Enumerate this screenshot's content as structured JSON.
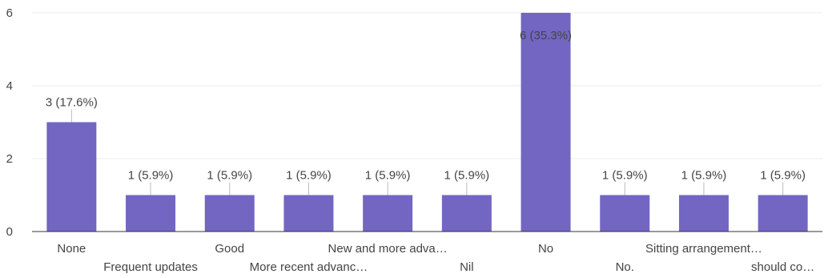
{
  "chart_data": {
    "type": "bar",
    "categories": [
      "None",
      "Frequent updates",
      "Good",
      "More recent advanc…",
      "New and more adva…",
      "Nil",
      "No",
      "No.",
      "Sitting arrangement…",
      "should co…"
    ],
    "values": [
      3,
      1,
      1,
      1,
      1,
      1,
      6,
      1,
      1,
      1
    ],
    "data_labels": [
      "3 (17.6%)",
      "1 (5.9%)",
      "1 (5.9%)",
      "1 (5.9%)",
      "1 (5.9%)",
      "1 (5.9%)",
      "6 (35.3%)",
      "1 (5.9%)",
      "1 (5.9%)",
      "1 (5.9%)"
    ],
    "ylim": [
      0,
      6
    ],
    "yticks": [
      "0",
      "2",
      "4",
      "6"
    ],
    "grid": true,
    "bar_color": "#7266c2",
    "title": "",
    "xlabel": "",
    "ylabel": ""
  }
}
